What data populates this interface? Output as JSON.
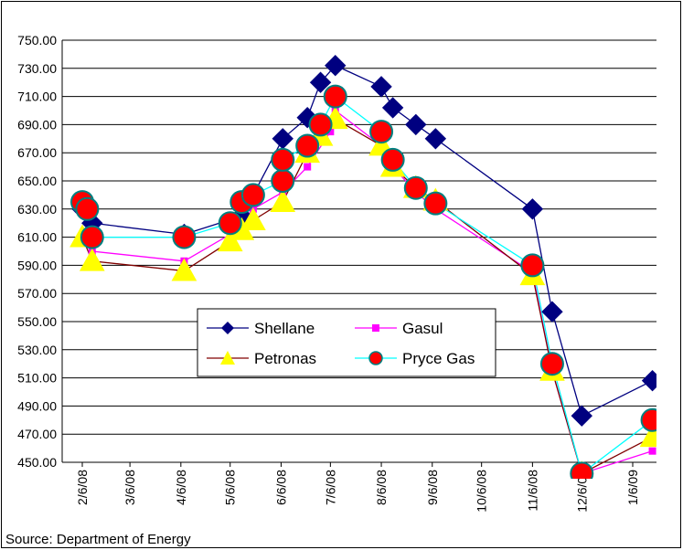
{
  "chart_data": {
    "type": "line",
    "title": "",
    "xlabel": "",
    "ylabel": "",
    "ylim": [
      450,
      750
    ],
    "yticks": [
      "750.00",
      "730.00",
      "710.00",
      "690.00",
      "670.00",
      "650.00",
      "630.00",
      "610.00",
      "590.00",
      "570.00",
      "550.00",
      "530.00",
      "510.00",
      "490.00",
      "470.00",
      "450.00"
    ],
    "xticks": [
      {
        "label": "2/6/08",
        "date": "2008-02-06"
      },
      {
        "label": "3/6/08",
        "date": "2008-03-06"
      },
      {
        "label": "4/6/08",
        "date": "2008-04-06"
      },
      {
        "label": "5/6/08",
        "date": "2008-05-06"
      },
      {
        "label": "6/6/08",
        "date": "2008-06-06"
      },
      {
        "label": "7/6/08",
        "date": "2008-07-06"
      },
      {
        "label": "8/6/08",
        "date": "2008-08-06"
      },
      {
        "label": "9/6/08",
        "date": "2008-09-06"
      },
      {
        "label": "10/6/08",
        "date": "2008-10-06"
      },
      {
        "label": "11/6/08",
        "date": "2008-11-06"
      },
      {
        "label": "12/6/08",
        "date": "2008-12-06"
      },
      {
        "label": "1/6/09",
        "date": "2009-01-06"
      }
    ],
    "grid": "horizontal",
    "legend_position": "center-bottom",
    "series": [
      {
        "name": "Shellane",
        "color": "#000080",
        "marker": "diamond",
        "points": [
          [
            "2008-02-06",
            630
          ],
          [
            "2008-02-12",
            620
          ],
          [
            "2008-04-08",
            612
          ],
          [
            "2008-05-13",
            625
          ],
          [
            "2008-05-20",
            640
          ],
          [
            "2008-06-07",
            680
          ],
          [
            "2008-06-22",
            695
          ],
          [
            "2008-06-30",
            720
          ],
          [
            "2008-07-09",
            732
          ],
          [
            "2008-08-06",
            717
          ],
          [
            "2008-08-13",
            702
          ],
          [
            "2008-08-27",
            690
          ],
          [
            "2008-09-08",
            680
          ],
          [
            "2008-11-06",
            630
          ],
          [
            "2008-11-18",
            557
          ],
          [
            "2008-12-06",
            483
          ],
          [
            "2009-01-18",
            508
          ]
        ]
      },
      {
        "name": "Gasul",
        "color": "#ff00ff",
        "marker": "square",
        "points": [
          [
            "2008-02-06",
            630
          ],
          [
            "2008-02-12",
            600
          ],
          [
            "2008-04-08",
            593
          ],
          [
            "2008-05-06",
            612
          ],
          [
            "2008-05-20",
            630
          ],
          [
            "2008-06-07",
            642
          ],
          [
            "2008-06-22",
            660
          ],
          [
            "2008-07-06",
            685
          ],
          [
            "2008-07-09",
            700
          ],
          [
            "2008-08-06",
            675
          ],
          [
            "2008-08-13",
            660
          ],
          [
            "2008-08-27",
            642
          ],
          [
            "2008-09-08",
            630
          ],
          [
            "2008-11-06",
            585
          ],
          [
            "2008-11-18",
            515
          ],
          [
            "2008-12-06",
            442
          ],
          [
            "2009-01-18",
            458
          ]
        ]
      },
      {
        "name": "Petronas",
        "color": "#800000",
        "marker": "triangle",
        "points": [
          [
            "2008-02-06",
            610
          ],
          [
            "2008-02-12",
            593
          ],
          [
            "2008-04-08",
            586
          ],
          [
            "2008-05-06",
            607
          ],
          [
            "2008-05-13",
            615
          ],
          [
            "2008-05-20",
            622
          ],
          [
            "2008-06-07",
            635
          ],
          [
            "2008-06-22",
            670
          ],
          [
            "2008-06-30",
            682
          ],
          [
            "2008-07-09",
            694
          ],
          [
            "2008-08-06",
            675
          ],
          [
            "2008-08-13",
            660
          ],
          [
            "2008-08-27",
            645
          ],
          [
            "2008-09-08",
            636
          ],
          [
            "2008-11-06",
            583
          ],
          [
            "2008-11-18",
            515
          ],
          [
            "2008-12-06",
            442
          ],
          [
            "2009-01-18",
            468
          ]
        ]
      },
      {
        "name": "Pryce Gas",
        "color": "#00ffff",
        "marker": "circle",
        "points": [
          [
            "2008-02-06",
            635
          ],
          [
            "2008-02-09",
            630
          ],
          [
            "2008-02-12",
            610
          ],
          [
            "2008-04-08",
            610
          ],
          [
            "2008-05-06",
            620
          ],
          [
            "2008-05-13",
            635
          ],
          [
            "2008-05-20",
            640
          ],
          [
            "2008-06-07",
            650
          ],
          [
            "2008-06-07",
            665
          ],
          [
            "2008-06-22",
            675
          ],
          [
            "2008-06-30",
            690
          ],
          [
            "2008-07-09",
            710
          ],
          [
            "2008-08-06",
            685
          ],
          [
            "2008-08-13",
            665
          ],
          [
            "2008-08-27",
            645
          ],
          [
            "2008-09-08",
            634
          ],
          [
            "2008-11-06",
            590
          ],
          [
            "2008-11-18",
            520
          ],
          [
            "2008-12-06",
            442
          ],
          [
            "2009-01-18",
            480
          ]
        ]
      }
    ]
  },
  "source": "Source: Department of Energy"
}
